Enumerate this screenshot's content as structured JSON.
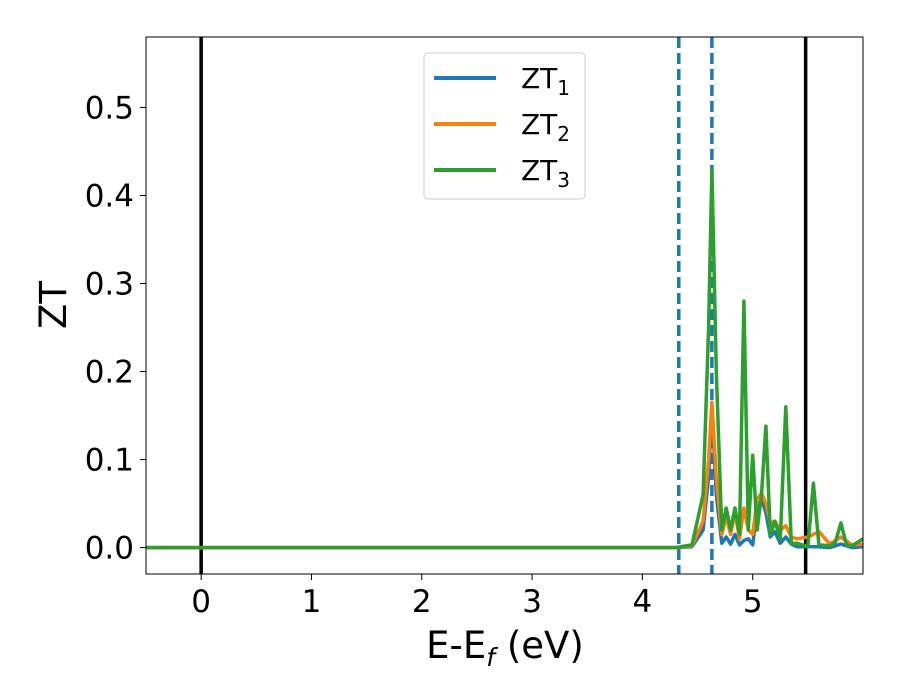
{
  "chart_data": {
    "type": "line",
    "xlabel": "E-E",
    "xlabel_sub": "f",
    "xlabel_unit": " (eV)",
    "ylabel": "ZT",
    "xlim": [
      -0.5,
      6.0
    ],
    "ylim": [
      -0.03,
      0.58
    ],
    "xticks": [
      0,
      1,
      2,
      3,
      4,
      5
    ],
    "xtick_labels": [
      "0",
      "1",
      "2",
      "3",
      "4",
      "5"
    ],
    "yticks": [
      0.0,
      0.1,
      0.2,
      0.3,
      0.4,
      0.5
    ],
    "ytick_labels": [
      "0.0",
      "0.1",
      "0.2",
      "0.3",
      "0.4",
      "0.5"
    ],
    "grid": false,
    "legend_position": "top-center",
    "vertical_lines": [
      {
        "x": 0.0,
        "style": "solid",
        "color": "#000000"
      },
      {
        "x": 4.33,
        "style": "dashed",
        "color": "#1f77b4"
      },
      {
        "x": 4.63,
        "style": "dashed",
        "color": "#1f77b4"
      },
      {
        "x": 5.48,
        "style": "solid",
        "color": "#000000"
      }
    ],
    "series": [
      {
        "name": "ZT",
        "sub": "1",
        "color": "#1f77b4",
        "x": [
          -0.5,
          4.3,
          4.45,
          4.55,
          4.6,
          4.63,
          4.67,
          4.72,
          4.76,
          4.8,
          4.84,
          4.88,
          4.92,
          4.96,
          5.0,
          5.04,
          5.08,
          5.12,
          5.16,
          5.2,
          5.25,
          5.3,
          5.35,
          5.4,
          5.5,
          5.6,
          5.7,
          5.8,
          5.9,
          6.0
        ],
        "y": [
          0,
          0,
          0.001,
          0.02,
          0.08,
          0.16,
          0.06,
          0.005,
          0.012,
          0.004,
          0.015,
          0.003,
          0.008,
          0.01,
          0.003,
          0.045,
          0.055,
          0.04,
          0.012,
          0.018,
          0.005,
          0.012,
          0.004,
          0.001,
          0.001,
          0.001,
          0.0,
          0.004,
          0.0,
          0.001
        ]
      },
      {
        "name": "ZT",
        "sub": "2",
        "color": "#ff7f0e",
        "x": [
          -0.5,
          4.3,
          4.45,
          4.55,
          4.6,
          4.63,
          4.67,
          4.72,
          4.76,
          4.8,
          4.84,
          4.88,
          4.92,
          4.96,
          5.0,
          5.04,
          5.08,
          5.12,
          5.16,
          5.2,
          5.25,
          5.3,
          5.35,
          5.4,
          5.5,
          5.6,
          5.7,
          5.8,
          5.9,
          6.0
        ],
        "y": [
          0,
          0,
          0.002,
          0.03,
          0.1,
          0.165,
          0.08,
          0.015,
          0.035,
          0.015,
          0.04,
          0.01,
          0.045,
          0.02,
          0.015,
          0.055,
          0.062,
          0.05,
          0.028,
          0.03,
          0.02,
          0.025,
          0.012,
          0.01,
          0.012,
          0.018,
          0.004,
          0.012,
          0.003,
          0.004
        ]
      },
      {
        "name": "ZT",
        "sub": "3",
        "color": "#2ca02c",
        "x": [
          -0.5,
          4.3,
          4.45,
          4.55,
          4.6,
          4.63,
          4.67,
          4.72,
          4.76,
          4.8,
          4.84,
          4.88,
          4.92,
          4.96,
          5.0,
          5.04,
          5.08,
          5.12,
          5.16,
          5.2,
          5.25,
          5.3,
          5.35,
          5.4,
          5.45,
          5.5,
          5.55,
          5.6,
          5.7,
          5.75,
          5.8,
          5.85,
          5.9,
          6.0
        ],
        "y": [
          0,
          0,
          0.003,
          0.06,
          0.25,
          0.43,
          0.2,
          0.02,
          0.045,
          0.02,
          0.045,
          0.015,
          0.28,
          0.02,
          0.105,
          0.02,
          0.06,
          0.138,
          0.015,
          0.03,
          0.01,
          0.16,
          0.005,
          0.005,
          0.003,
          0.001,
          0.073,
          0.003,
          0.002,
          0.006,
          0.028,
          0.003,
          0.002,
          0.01
        ]
      }
    ]
  }
}
